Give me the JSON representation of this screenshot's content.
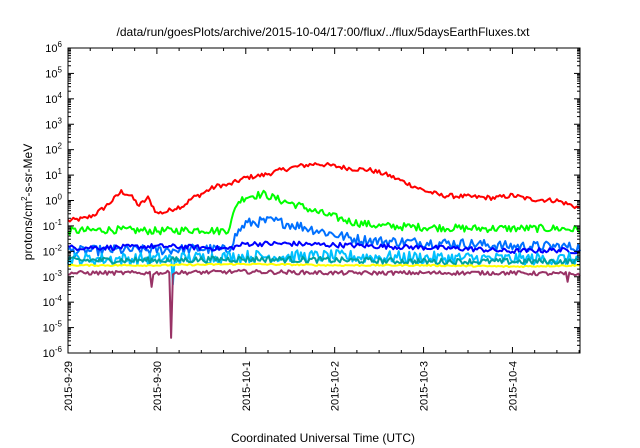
{
  "chart_data": {
    "type": "line",
    "title": "/data/run/goesPlots/archive/2015-10-04/17:00/flux/../flux/5daysEarthFluxes.txt",
    "xlabel": "Coordinated Universal Time (UTC)",
    "ylabel_prefix": "protons/cm",
    "ylabel_sup": "2",
    "ylabel_suffix": "-s-sr-MeV",
    "y_scale": "log",
    "ylim": [
      1e-06,
      1000000.0
    ],
    "y_ticks": [
      {
        "base": "10",
        "exp": "-6",
        "value": -6
      },
      {
        "base": "10",
        "exp": "-5",
        "value": -5
      },
      {
        "base": "10",
        "exp": "-4",
        "value": -4
      },
      {
        "base": "10",
        "exp": "-3",
        "value": -3
      },
      {
        "base": "10",
        "exp": "-2",
        "value": -2
      },
      {
        "base": "10",
        "exp": "-1",
        "value": -1
      },
      {
        "base": "10",
        "exp": "0",
        "value": 0
      },
      {
        "base": "10",
        "exp": "1",
        "value": 1
      },
      {
        "base": "10",
        "exp": "2",
        "value": 2
      },
      {
        "base": "10",
        "exp": "3",
        "value": 3
      },
      {
        "base": "10",
        "exp": "4",
        "value": 4
      },
      {
        "base": "10",
        "exp": "5",
        "value": 5
      },
      {
        "base": "10",
        "exp": "6",
        "value": 6
      }
    ],
    "x_ticks": [
      "2015-9-29",
      "2015-9-30",
      "2015-10-1",
      "2015-10-2",
      "2015-10-3",
      "2015-10-4"
    ],
    "xlim_days": [
      0,
      5.76
    ],
    "grid": false,
    "legend": "none",
    "series": [
      {
        "color": "#ff0000",
        "noise": 0.09,
        "spikes": [],
        "points": [
          [
            0,
            -0.8
          ],
          [
            0.1,
            -0.75
          ],
          [
            0.2,
            -0.7
          ],
          [
            0.3,
            -0.55
          ],
          [
            0.4,
            -0.3
          ],
          [
            0.5,
            0
          ],
          [
            0.6,
            0.35
          ],
          [
            0.7,
            0.2
          ],
          [
            0.8,
            -0.2
          ],
          [
            0.9,
            0.1
          ],
          [
            1,
            -0.5
          ],
          [
            1.1,
            -0.45
          ],
          [
            1.2,
            -0.3
          ],
          [
            1.3,
            -0.2
          ],
          [
            1.4,
            0.1
          ],
          [
            1.5,
            0.25
          ],
          [
            1.6,
            0.45
          ],
          [
            1.7,
            0.6
          ],
          [
            1.8,
            0.6
          ],
          [
            1.9,
            0.75
          ],
          [
            2.0,
            0.9
          ],
          [
            2.2,
            1.0
          ],
          [
            2.4,
            1.2
          ],
          [
            2.6,
            1.35
          ],
          [
            2.8,
            1.45
          ],
          [
            3.0,
            1.35
          ],
          [
            3.2,
            1.25
          ],
          [
            3.4,
            1.2
          ],
          [
            3.6,
            1.0
          ],
          [
            3.8,
            0.7
          ],
          [
            4.0,
            0.4
          ],
          [
            4.2,
            0.2
          ],
          [
            4.5,
            0.15
          ],
          [
            4.8,
            0.1
          ],
          [
            5.0,
            0.2
          ],
          [
            5.2,
            0.05
          ],
          [
            5.5,
            0.0
          ],
          [
            5.76,
            -0.3
          ]
        ]
      },
      {
        "color": "#00ff00",
        "noise": 0.15,
        "spikes": [],
        "points": [
          [
            0,
            -1.2
          ],
          [
            0.5,
            -1.15
          ],
          [
            1.0,
            -1.2
          ],
          [
            1.5,
            -1.15
          ],
          [
            1.7,
            -1.2
          ],
          [
            1.8,
            -1.15
          ],
          [
            1.85,
            -0.7
          ],
          [
            1.9,
            -0.1
          ],
          [
            2.0,
            0.15
          ],
          [
            2.2,
            0.25
          ],
          [
            2.4,
            0.0
          ],
          [
            2.6,
            -0.2
          ],
          [
            2.8,
            -0.45
          ],
          [
            3.0,
            -0.65
          ],
          [
            3.2,
            -0.85
          ],
          [
            3.5,
            -1.0
          ],
          [
            4.0,
            -1.05
          ],
          [
            4.5,
            -1.1
          ],
          [
            5.0,
            -1.1
          ],
          [
            5.5,
            -1.1
          ],
          [
            5.76,
            -1.15
          ]
        ]
      },
      {
        "color": "#0070ff",
        "noise": 0.2,
        "spikes": [],
        "points": [
          [
            0,
            -2.0
          ],
          [
            0.5,
            -1.95
          ],
          [
            1.0,
            -1.95
          ],
          [
            1.5,
            -1.9
          ],
          [
            1.8,
            -1.95
          ],
          [
            1.9,
            -1.3
          ],
          [
            2.0,
            -0.9
          ],
          [
            2.3,
            -0.8
          ],
          [
            2.6,
            -1.0
          ],
          [
            2.9,
            -1.25
          ],
          [
            3.2,
            -1.5
          ],
          [
            3.5,
            -1.6
          ],
          [
            4.0,
            -1.65
          ],
          [
            4.5,
            -1.7
          ],
          [
            5.0,
            -1.8
          ],
          [
            5.5,
            -1.8
          ],
          [
            5.76,
            -1.85
          ]
        ]
      },
      {
        "color": "#0000ff",
        "noise": 0.1,
        "spikes": [],
        "points": [
          [
            0,
            -1.85
          ],
          [
            0.5,
            -1.85
          ],
          [
            1.0,
            -1.8
          ],
          [
            1.5,
            -1.85
          ],
          [
            1.8,
            -1.9
          ],
          [
            2.0,
            -1.7
          ],
          [
            2.5,
            -1.7
          ],
          [
            3.0,
            -1.75
          ],
          [
            3.5,
            -1.8
          ],
          [
            4.0,
            -1.85
          ],
          [
            4.5,
            -1.9
          ],
          [
            5.0,
            -2.0
          ],
          [
            5.5,
            -1.95
          ],
          [
            5.76,
            -2.0
          ]
        ]
      },
      {
        "color": "#00c0ff",
        "noise": 0.25,
        "spikes": [
          [
            1.18,
            -3.3
          ]
        ],
        "points": [
          [
            0,
            -2.3
          ],
          [
            1.0,
            -2.3
          ],
          [
            2.0,
            -2.2
          ],
          [
            3.0,
            -2.2
          ],
          [
            4.0,
            -2.25
          ],
          [
            5.0,
            -2.3
          ],
          [
            5.76,
            -2.3
          ]
        ]
      },
      {
        "color": "#00a0a0",
        "noise": 0.12,
        "spikes": [],
        "points": [
          [
            0,
            -2.35
          ],
          [
            1.0,
            -2.35
          ],
          [
            2.0,
            -2.3
          ],
          [
            3.0,
            -2.35
          ],
          [
            4.0,
            -2.4
          ],
          [
            5.0,
            -2.4
          ],
          [
            5.76,
            -2.4
          ]
        ]
      },
      {
        "color": "#ffff00",
        "noise": 0.03,
        "spikes": [],
        "points": [
          [
            0,
            -2.55
          ],
          [
            1.0,
            -2.55
          ],
          [
            2.0,
            -2.5
          ],
          [
            3.0,
            -2.55
          ],
          [
            4.0,
            -2.55
          ],
          [
            5.0,
            -2.6
          ],
          [
            5.76,
            -2.55
          ]
        ]
      },
      {
        "color": "#993366",
        "noise": 0.08,
        "spikes": [
          [
            0.95,
            -3.4
          ],
          [
            1.17,
            -5.4
          ],
          [
            5.62,
            -3.2
          ]
        ],
        "points": [
          [
            0,
            -2.85
          ],
          [
            1.0,
            -2.85
          ],
          [
            2.0,
            -2.8
          ],
          [
            3.0,
            -2.85
          ],
          [
            4.0,
            -2.85
          ],
          [
            5.0,
            -2.85
          ],
          [
            5.76,
            -2.9
          ]
        ]
      }
    ]
  }
}
